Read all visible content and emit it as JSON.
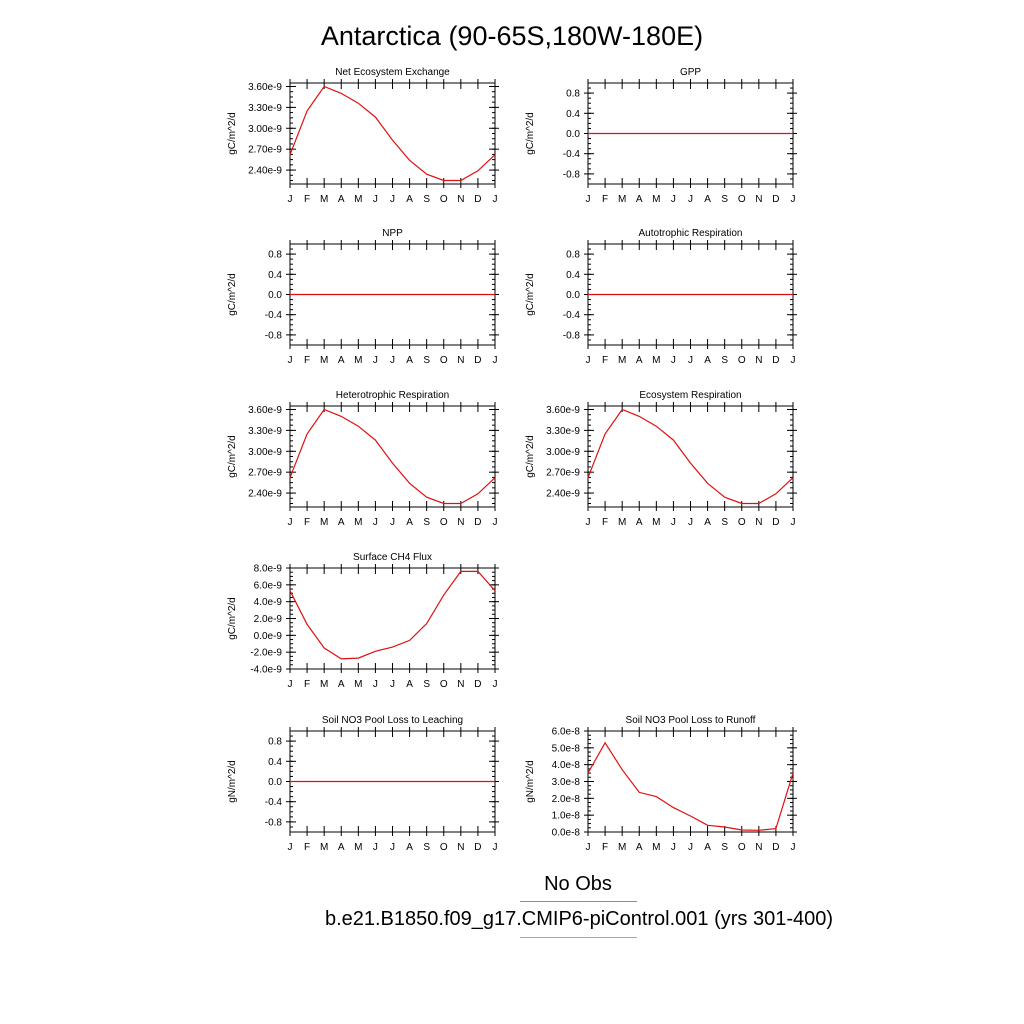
{
  "title": "Antarctica (90-65S,180W-180E)",
  "legend": {
    "obs_label": "No Obs",
    "obs_color": "#8080ff",
    "model_label": "b.e21.B1850.f09_g17.CMIP6-piControl.001 (yrs 301-400)",
    "model_color": "#ff8080"
  },
  "chart_data": [
    {
      "type": "line",
      "title": "Net Ecosystem Exchange",
      "ylabel": "gC/m^2/d",
      "categories": [
        "J",
        "F",
        "M",
        "A",
        "M",
        "J",
        "J",
        "A",
        "S",
        "O",
        "N",
        "D",
        "J"
      ],
      "values": [
        2.62e-09,
        3.25e-09,
        3.6e-09,
        3.5e-09,
        3.36e-09,
        3.16e-09,
        2.83e-09,
        2.54e-09,
        2.34e-09,
        2.25e-09,
        2.25e-09,
        2.39e-09,
        2.62e-09
      ],
      "ylim": [
        2.2e-09,
        3.65e-09
      ],
      "yticks": [
        "2.40e-9",
        "2.70e-9",
        "3.00e-9",
        "3.30e-9",
        "3.60e-9"
      ],
      "ytick_values": [
        2.4e-09,
        2.7e-09,
        3e-09,
        3.3e-09,
        3.6e-09
      ],
      "line_color": "#e01010"
    },
    {
      "type": "line",
      "title": "GPP",
      "ylabel": "gC/m^2/d",
      "categories": [
        "J",
        "F",
        "M",
        "A",
        "M",
        "J",
        "J",
        "A",
        "S",
        "O",
        "N",
        "D",
        "J"
      ],
      "values": [
        0,
        0,
        0,
        0,
        0,
        0,
        0,
        0,
        0,
        0,
        0,
        0,
        0
      ],
      "ylim": [
        -1,
        1
      ],
      "yticks": [
        "-0.8",
        "-0.4",
        "0.0",
        "0.4",
        "0.8"
      ],
      "ytick_values": [
        -0.8,
        -0.4,
        0.0,
        0.4,
        0.8
      ],
      "line_color": "#e01010"
    },
    {
      "type": "line",
      "title": "NPP",
      "ylabel": "gC/m^2/d",
      "categories": [
        "J",
        "F",
        "M",
        "A",
        "M",
        "J",
        "J",
        "A",
        "S",
        "O",
        "N",
        "D",
        "J"
      ],
      "values": [
        0,
        0,
        0,
        0,
        0,
        0,
        0,
        0,
        0,
        0,
        0,
        0,
        0
      ],
      "ylim": [
        -1,
        1
      ],
      "yticks": [
        "-0.8",
        "-0.4",
        "0.0",
        "0.4",
        "0.8"
      ],
      "ytick_values": [
        -0.8,
        -0.4,
        0.0,
        0.4,
        0.8
      ],
      "line_color": "#e01010"
    },
    {
      "type": "line",
      "title": "Autotrophic Respiration",
      "ylabel": "gC/m^2/d",
      "categories": [
        "J",
        "F",
        "M",
        "A",
        "M",
        "J",
        "J",
        "A",
        "S",
        "O",
        "N",
        "D",
        "J"
      ],
      "values": [
        0,
        0,
        0,
        0,
        0,
        0,
        0,
        0,
        0,
        0,
        0,
        0,
        0
      ],
      "ylim": [
        -1,
        1
      ],
      "yticks": [
        "-0.8",
        "-0.4",
        "0.0",
        "0.4",
        "0.8"
      ],
      "ytick_values": [
        -0.8,
        -0.4,
        0.0,
        0.4,
        0.8
      ],
      "line_color": "#e01010"
    },
    {
      "type": "line",
      "title": "Heterotrophic Respiration",
      "ylabel": "gC/m^2/d",
      "categories": [
        "J",
        "F",
        "M",
        "A",
        "M",
        "J",
        "J",
        "A",
        "S",
        "O",
        "N",
        "D",
        "J"
      ],
      "values": [
        2.62e-09,
        3.25e-09,
        3.6e-09,
        3.5e-09,
        3.36e-09,
        3.16e-09,
        2.83e-09,
        2.54e-09,
        2.34e-09,
        2.25e-09,
        2.25e-09,
        2.39e-09,
        2.62e-09
      ],
      "ylim": [
        2.2e-09,
        3.65e-09
      ],
      "yticks": [
        "2.40e-9",
        "2.70e-9",
        "3.00e-9",
        "3.30e-9",
        "3.60e-9"
      ],
      "ytick_values": [
        2.4e-09,
        2.7e-09,
        3e-09,
        3.3e-09,
        3.6e-09
      ],
      "line_color": "#e01010"
    },
    {
      "type": "line",
      "title": "Ecosystem Respiration",
      "ylabel": "gC/m^2/d",
      "categories": [
        "J",
        "F",
        "M",
        "A",
        "M",
        "J",
        "J",
        "A",
        "S",
        "O",
        "N",
        "D",
        "J"
      ],
      "values": [
        2.62e-09,
        3.25e-09,
        3.6e-09,
        3.5e-09,
        3.36e-09,
        3.16e-09,
        2.83e-09,
        2.54e-09,
        2.34e-09,
        2.25e-09,
        2.25e-09,
        2.39e-09,
        2.62e-09
      ],
      "ylim": [
        2.2e-09,
        3.65e-09
      ],
      "yticks": [
        "2.40e-9",
        "2.70e-9",
        "3.00e-9",
        "3.30e-9",
        "3.60e-9"
      ],
      "ytick_values": [
        2.4e-09,
        2.7e-09,
        3e-09,
        3.3e-09,
        3.6e-09
      ],
      "line_color": "#e01010"
    },
    {
      "type": "line",
      "title": "Surface CH4 Flux",
      "ylabel": "gC/m^2/d",
      "categories": [
        "J",
        "F",
        "M",
        "A",
        "M",
        "J",
        "J",
        "A",
        "S",
        "O",
        "N",
        "D",
        "J"
      ],
      "values": [
        5.3e-09,
        1.3e-09,
        -1.5e-09,
        -2.8e-09,
        -2.7e-09,
        -1.9e-09,
        -1.4e-09,
        -6e-10,
        1.4e-09,
        4.8e-09,
        7.6e-09,
        7.6e-09,
        5.3e-09
      ],
      "ylim": [
        -4e-09,
        8e-09
      ],
      "yticks": [
        "-4.0e-9",
        "-2.0e-9",
        "0.0e-9",
        "2.0e-9",
        "4.0e-9",
        "6.0e-9",
        "8.0e-9"
      ],
      "ytick_values": [
        -4e-09,
        -2e-09,
        0,
        2e-09,
        4e-09,
        6e-09,
        8e-09
      ],
      "line_color": "#e01010"
    },
    {
      "type": "line",
      "title": "Soil NO3 Pool Loss to Leaching",
      "ylabel": "gN/m^2/d",
      "categories": [
        "J",
        "F",
        "M",
        "A",
        "M",
        "J",
        "J",
        "A",
        "S",
        "O",
        "N",
        "D",
        "J"
      ],
      "values": [
        0,
        0,
        0,
        0,
        0,
        0,
        0,
        0,
        0,
        0,
        0,
        0,
        0
      ],
      "ylim": [
        -1,
        1
      ],
      "yticks": [
        "-0.8",
        "-0.4",
        "0.0",
        "0.4",
        "0.8"
      ],
      "ytick_values": [
        -0.8,
        -0.4,
        0.0,
        0.4,
        0.8
      ],
      "line_color": "#e01010"
    },
    {
      "type": "line",
      "title": "Soil NO3 Pool Loss to Runoff",
      "ylabel": "gN/m^2/d",
      "categories": [
        "J",
        "F",
        "M",
        "A",
        "M",
        "J",
        "J",
        "A",
        "S",
        "O",
        "N",
        "D",
        "J"
      ],
      "values": [
        3.5e-08,
        5.3e-08,
        3.7e-08,
        2.35e-08,
        2.1e-08,
        1.45e-08,
        9.5e-09,
        4e-09,
        3e-09,
        1.2e-09,
        1e-09,
        2e-09,
        3.5e-08
      ],
      "ylim": [
        0,
        6e-08
      ],
      "yticks": [
        "0.0e-8",
        "1.0e-8",
        "2.0e-8",
        "3.0e-8",
        "4.0e-8",
        "5.0e-8",
        "6.0e-8"
      ],
      "ytick_values": [
        0,
        1e-08,
        2e-08,
        3e-08,
        4e-08,
        5e-08,
        6e-08
      ],
      "line_color": "#e01010"
    }
  ]
}
